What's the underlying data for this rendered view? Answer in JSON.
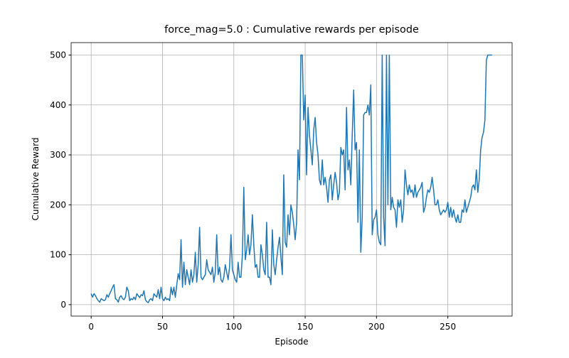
{
  "chart_data": {
    "type": "line",
    "title": "force_mag=5.0 : Cumulative rewards per episode",
    "xlabel": "Episode",
    "ylabel": "Cumulative Reward",
    "xlim": [
      -14.05,
      295.05
    ],
    "ylim": [
      -22.9,
      524.9
    ],
    "xticks": [
      0,
      50,
      100,
      150,
      200,
      250
    ],
    "yticks": [
      0,
      100,
      200,
      300,
      400,
      500
    ],
    "grid": true,
    "x": [
      0,
      1,
      2,
      3,
      4,
      5,
      6,
      7,
      8,
      9,
      10,
      11,
      12,
      13,
      14,
      15,
      16,
      17,
      18,
      19,
      20,
      21,
      22,
      23,
      24,
      25,
      26,
      27,
      28,
      29,
      30,
      31,
      32,
      33,
      34,
      35,
      36,
      37,
      38,
      39,
      40,
      41,
      42,
      43,
      44,
      45,
      46,
      47,
      48,
      49,
      50,
      51,
      52,
      53,
      54,
      55,
      56,
      57,
      58,
      59,
      60,
      61,
      62,
      63,
      64,
      65,
      66,
      67,
      68,
      69,
      70,
      71,
      72,
      73,
      74,
      75,
      76,
      77,
      78,
      79,
      80,
      81,
      82,
      83,
      84,
      85,
      86,
      87,
      88,
      89,
      90,
      91,
      92,
      93,
      94,
      95,
      96,
      97,
      98,
      99,
      100,
      101,
      102,
      103,
      104,
      105,
      106,
      107,
      108,
      109,
      110,
      111,
      112,
      113,
      114,
      115,
      116,
      117,
      118,
      119,
      120,
      121,
      122,
      123,
      124,
      125,
      126,
      127,
      128,
      129,
      130,
      131,
      132,
      133,
      134,
      135,
      136,
      137,
      138,
      139,
      140,
      141,
      142,
      143,
      144,
      145,
      146,
      147,
      148,
      149,
      150,
      151,
      152,
      153,
      154,
      155,
      156,
      157,
      158,
      159,
      160,
      161,
      162,
      163,
      164,
      165,
      166,
      167,
      168,
      169,
      170,
      171,
      172,
      173,
      174,
      175,
      176,
      177,
      178,
      179,
      180,
      181,
      182,
      183,
      184,
      185,
      186,
      187,
      188,
      189,
      190,
      191,
      192,
      193,
      194,
      195,
      196,
      197,
      198,
      199,
      200,
      201,
      202,
      203,
      204,
      205,
      206,
      207,
      208,
      209,
      210,
      211,
      212,
      213,
      214,
      215,
      216,
      217,
      218,
      219,
      220,
      221,
      222,
      223,
      224,
      225,
      226,
      227,
      228,
      229,
      230,
      231,
      232,
      233,
      234,
      235,
      236,
      237,
      238,
      239,
      240,
      241,
      242,
      243,
      244,
      245,
      246,
      247,
      248,
      249,
      250,
      251,
      252,
      253,
      254,
      255,
      256,
      257,
      258,
      259,
      260,
      261,
      262,
      263,
      264,
      265,
      266,
      267,
      268,
      269,
      270,
      271,
      272,
      273,
      274,
      275,
      276,
      277,
      278,
      279,
      280,
      281
    ],
    "series": [
      {
        "name": "Cumulative Reward",
        "color": "#1f77b4",
        "values": [
          22,
          15,
          22,
          18,
          12,
          8,
          5,
          12,
          10,
          8,
          10,
          20,
          15,
          22,
          28,
          35,
          40,
          12,
          10,
          5,
          15,
          18,
          12,
          10,
          15,
          35,
          28,
          8,
          12,
          10,
          15,
          10,
          22,
          18,
          14,
          20,
          18,
          28,
          10,
          6,
          4,
          10,
          12,
          8,
          22,
          18,
          15,
          30,
          12,
          35,
          12,
          8,
          15,
          10,
          12,
          8,
          35,
          20,
          35,
          15,
          40,
          62,
          50,
          130,
          35,
          85,
          40,
          70,
          55,
          40,
          70,
          45,
          60,
          105,
          45,
          80,
          155,
          55,
          50,
          55,
          60,
          90,
          70,
          65,
          60,
          75,
          45,
          65,
          140,
          60,
          75,
          50,
          45,
          55,
          80,
          65,
          50,
          75,
          140,
          70,
          60,
          50,
          45,
          85,
          55,
          55,
          100,
          235,
          90,
          110,
          140,
          100,
          120,
          180,
          120,
          75,
          80,
          55,
          55,
          120,
          100,
          70,
          60,
          165,
          55,
          55,
          40,
          150,
          80,
          60,
          90,
          115,
          135,
          95,
          60,
          260,
          125,
          115,
          180,
          140,
          200,
          185,
          160,
          130,
          165,
          310,
          250,
          500,
          500,
          370,
          420,
          260,
          395,
          340,
          310,
          280,
          350,
          375,
          325,
          300,
          250,
          240,
          290,
          240,
          255,
          235,
          205,
          250,
          260,
          210,
          240,
          265,
          245,
          210,
          225,
          315,
          300,
          310,
          230,
          395,
          270,
          290,
          240,
          340,
          430,
          310,
          325,
          165,
          310,
          105,
          175,
          380,
          385,
          385,
          400,
          380,
          440,
          140,
          170,
          175,
          190,
          140,
          125,
          120,
          500,
          175,
          118,
          500,
          200,
          500,
          190,
          215,
          195,
          190,
          155,
          210,
          195,
          210,
          165,
          190,
          270,
          240,
          220,
          240,
          225,
          230,
          215,
          240,
          215,
          225,
          230,
          235,
          245,
          185,
          195,
          215,
          230,
          225,
          235,
          255,
          230,
          200,
          200,
          210,
          190,
          180,
          185,
          190,
          185,
          190,
          205,
          175,
          195,
          175,
          190,
          175,
          165,
          180,
          165,
          165,
          190,
          185,
          210,
          185,
          195,
          205,
          215,
          235,
          240,
          230,
          270,
          225,
          250,
          310,
          335,
          345,
          370,
          490,
          500,
          500,
          500,
          500
        ]
      }
    ]
  }
}
